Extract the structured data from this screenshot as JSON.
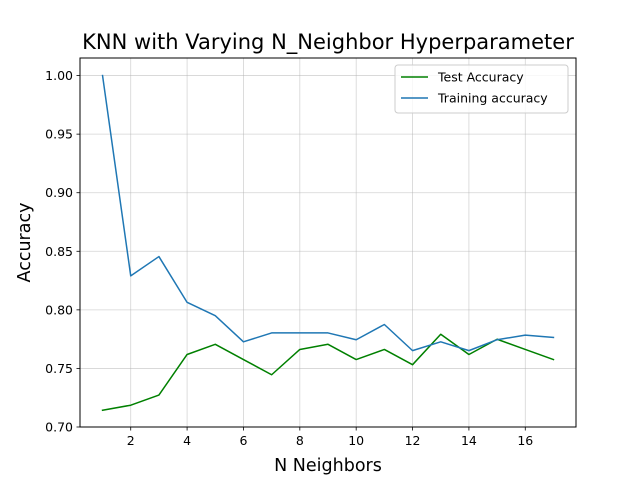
{
  "chart_data": {
    "type": "line",
    "title": "KNN with Varying N_Neighbor Hyperparameter",
    "xlabel": "N Neighbors",
    "ylabel": "Accuracy",
    "x": [
      1,
      2,
      3,
      4,
      5,
      6,
      7,
      8,
      9,
      10,
      11,
      12,
      13,
      14,
      15,
      16,
      17
    ],
    "xlim": [
      0.2,
      17.8
    ],
    "ylim": [
      0.7,
      1.015
    ],
    "xticks": [
      2,
      4,
      6,
      8,
      10,
      12,
      14,
      16
    ],
    "xtick_labels": [
      "2",
      "4",
      "6",
      "8",
      "10",
      "12",
      "14",
      "16"
    ],
    "yticks": [
      0.7,
      0.75,
      0.8,
      0.85,
      0.9,
      0.95,
      1.0
    ],
    "ytick_labels": [
      "0.70",
      "0.75",
      "0.80",
      "0.85",
      "0.90",
      "0.95",
      "1.00"
    ],
    "grid": true,
    "legend_position": "top-right",
    "series": [
      {
        "name": "Test Accuracy",
        "color": "#008000",
        "values": [
          0.7143,
          0.7186,
          0.7273,
          0.7619,
          0.7706,
          0.7576,
          0.7446,
          0.7662,
          0.7706,
          0.7576,
          0.7662,
          0.7532,
          0.7792,
          0.7619,
          0.7749,
          0.7662,
          0.7576
        ]
      },
      {
        "name": "Training accuracy",
        "color": "#1f77b4",
        "values": [
          1.0,
          0.829,
          0.8455,
          0.8064,
          0.795,
          0.7727,
          0.7803,
          0.7803,
          0.7803,
          0.7745,
          0.7875,
          0.7652,
          0.7727,
          0.7652,
          0.7745,
          0.7784,
          0.7765
        ]
      }
    ]
  }
}
